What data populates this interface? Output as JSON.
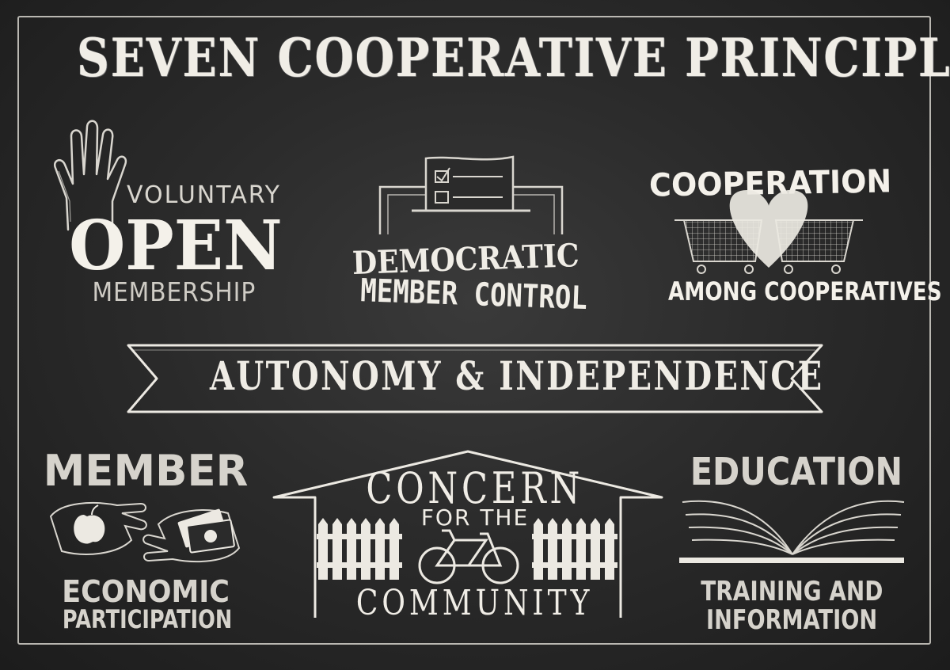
{
  "title": "SEVEN COOPERATIVE PRINCIPLES",
  "principles": {
    "voluntary": {
      "line1": "VOLUNTARY",
      "line2": "OPEN",
      "line3": "MEMBERSHIP",
      "icon": "raised-hand-icon"
    },
    "democratic": {
      "line1": "DEMOCRATIC",
      "line2": "MEMBER CONTROL",
      "icon": "ballot-box-icon"
    },
    "cooperation": {
      "line1": "COOPERATION",
      "line2": "AMONG COOPERATIVES",
      "icon": "shopping-carts-heart-icon"
    },
    "autonomy": {
      "line1": "AUTONOMY & INDEPENDENCE",
      "icon": "ribbon-banner-icon"
    },
    "economic": {
      "line1": "MEMBER",
      "line2": "ECONOMIC",
      "line3": "PARTICIPATION",
      "icon": "hands-apple-money-icon"
    },
    "community": {
      "line1": "CONCERN",
      "line2": "FOR THE",
      "line3": "COMMUNITY",
      "icon": "house-fence-bicycle-icon"
    },
    "education": {
      "line1": "EDUCATION",
      "line2": "TRAINING AND",
      "line3": "INFORMATION",
      "icon": "open-book-icon"
    }
  },
  "colors": {
    "chalkboard": "#2b2b2b",
    "chalk": "#ece9e2"
  }
}
